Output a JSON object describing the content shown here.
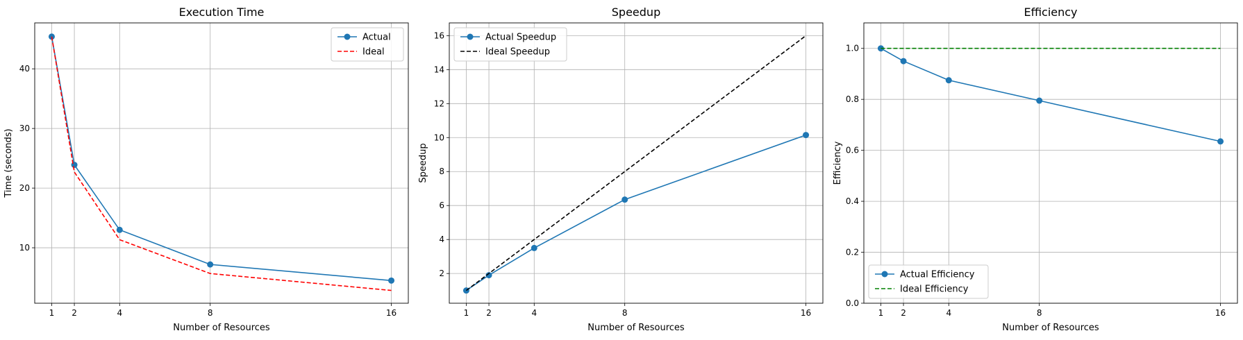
{
  "charts": [
    {
      "type": "line",
      "title": "Execution Time",
      "xlabel": "Number of Resources",
      "ylabel": "Time (seconds)",
      "xlim": [
        0.25,
        16.75
      ],
      "ylim": [
        0.7,
        47.7
      ],
      "x_ticks": [
        1,
        2,
        4,
        8,
        16
      ],
      "y_ticks": [
        10,
        20,
        30,
        40
      ],
      "grid": true,
      "legend_position": "top-right",
      "x": [
        1,
        2,
        4,
        8,
        16
      ],
      "series": [
        {
          "name": "Actual",
          "values": [
            45.4,
            23.9,
            13.0,
            7.2,
            4.5
          ],
          "color": "#1f77b4",
          "style": "solid",
          "marker": "circle"
        },
        {
          "name": "Ideal",
          "values": [
            45.4,
            22.7,
            11.35,
            5.68,
            2.84
          ],
          "color": "#ff0000",
          "style": "dashed",
          "marker": "none"
        }
      ]
    },
    {
      "type": "line",
      "title": "Speedup",
      "xlabel": "Number of Resources",
      "ylabel": "Speedup",
      "xlim": [
        0.25,
        16.75
      ],
      "ylim": [
        0.25,
        16.75
      ],
      "x_ticks": [
        1,
        2,
        4,
        8,
        16
      ],
      "y_ticks": [
        2,
        4,
        6,
        8,
        10,
        12,
        14,
        16
      ],
      "grid": true,
      "legend_position": "top-left",
      "x": [
        1,
        2,
        4,
        8,
        16
      ],
      "series": [
        {
          "name": "Actual Speedup",
          "values": [
            1.0,
            1.9,
            3.5,
            6.35,
            10.15
          ],
          "color": "#1f77b4",
          "style": "solid",
          "marker": "circle"
        },
        {
          "name": "Ideal Speedup",
          "values": [
            1,
            2,
            4,
            8,
            16
          ],
          "color": "#000000",
          "style": "dashed",
          "marker": "none"
        }
      ]
    },
    {
      "type": "line",
      "title": "Efficiency",
      "xlabel": "Number of Resources",
      "ylabel": "Efficiency",
      "xlim": [
        0.25,
        16.75
      ],
      "ylim": [
        0.0,
        1.1
      ],
      "x_ticks": [
        1,
        2,
        4,
        8,
        16
      ],
      "y_ticks": [
        0.0,
        0.2,
        0.4,
        0.6,
        0.8,
        1.0
      ],
      "y_tick_labels": [
        "0.0",
        "0.2",
        "0.4",
        "0.6",
        "0.8",
        "1.0"
      ],
      "grid": true,
      "legend_position": "bottom-left",
      "x": [
        1,
        2,
        4,
        8,
        16
      ],
      "series": [
        {
          "name": "Actual Efficiency",
          "values": [
            1.0,
            0.95,
            0.875,
            0.795,
            0.635
          ],
          "color": "#1f77b4",
          "style": "solid",
          "marker": "circle"
        },
        {
          "name": "Ideal Efficiency",
          "values": [
            1.0,
            1.0,
            1.0,
            1.0,
            1.0
          ],
          "color": "#008000",
          "style": "dashed",
          "marker": "none"
        }
      ]
    }
  ]
}
